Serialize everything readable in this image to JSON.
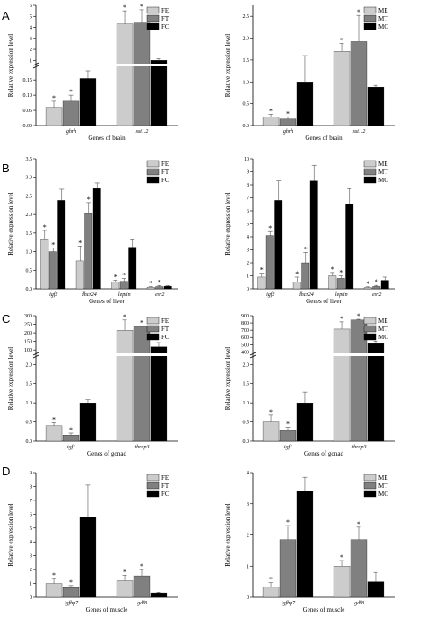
{
  "panel_labels": [
    "A",
    "B",
    "C",
    "D"
  ],
  "colors": {
    "E": "#cccccc",
    "T": "#808080",
    "C": "#000000",
    "axis": "#000000",
    "error": "#555555"
  },
  "chart_data": [
    {
      "type": "bar",
      "panel": "A",
      "position": "left",
      "broken_axis": true,
      "categories": [
        "ghrh",
        "sst1.2"
      ],
      "series": [
        {
          "name": "FE",
          "values": [
            0.06,
            4.3
          ],
          "errors": [
            0.02,
            1.2
          ],
          "sig": [
            true,
            true
          ]
        },
        {
          "name": "FT",
          "values": [
            0.08,
            4.4
          ],
          "errors": [
            0.02,
            1.2
          ],
          "sig": [
            true,
            true
          ]
        },
        {
          "name": "FC",
          "values": [
            0.155,
            1.0
          ],
          "errors": [
            0.025,
            0.15
          ],
          "sig": [
            false,
            false
          ]
        }
      ],
      "ylabel": "Relative expression level",
      "xlabel": "Genes of brain",
      "lower_ticks": [
        "0.00",
        "0.05",
        "0.10",
        "0.15"
      ],
      "lower_range": [
        0,
        0.18
      ],
      "upper_ticks": [
        "1",
        "2",
        "3",
        "4",
        "5",
        "6"
      ],
      "upper_range": [
        0.7,
        6
      ]
    },
    {
      "type": "bar",
      "panel": "A",
      "position": "right",
      "broken_axis": false,
      "categories": [
        "ghrh",
        "sst1.2"
      ],
      "series": [
        {
          "name": "ME",
          "values": [
            0.2,
            1.7
          ],
          "errors": [
            0.06,
            0.18
          ],
          "sig": [
            true,
            true
          ]
        },
        {
          "name": "MT",
          "values": [
            0.15,
            1.92
          ],
          "errors": [
            0.05,
            0.6
          ],
          "sig": [
            true,
            true
          ]
        },
        {
          "name": "MC",
          "values": [
            1.0,
            0.88
          ],
          "errors": [
            0.6,
            0.04
          ],
          "sig": [
            false,
            false
          ]
        }
      ],
      "ylabel": "Relative expression level",
      "xlabel": "Genes of brain",
      "yticks": [
        "0.0",
        "0.5",
        "1.0",
        "1.5",
        "2.0",
        "2.5"
      ],
      "ylim": [
        0,
        2.75
      ]
    },
    {
      "type": "bar",
      "panel": "B",
      "position": "left",
      "broken_axis": false,
      "categories": [
        "igf2",
        "dhcr24",
        "leptin",
        "esr2"
      ],
      "series": [
        {
          "name": "FE",
          "values": [
            1.32,
            0.75,
            0.18,
            0.04
          ],
          "errors": [
            0.25,
            0.4,
            0.05,
            0.02
          ],
          "sig": [
            true,
            true,
            true,
            true
          ]
        },
        {
          "name": "FT",
          "values": [
            1.0,
            2.02,
            0.2,
            0.06
          ],
          "errors": [
            0.1,
            0.3,
            0.08,
            0.03
          ],
          "sig": [
            true,
            true,
            true,
            true
          ]
        },
        {
          "name": "FC",
          "values": [
            2.38,
            2.7,
            1.12,
            0.07
          ],
          "errors": [
            0.3,
            0.15,
            0.2,
            0.02
          ],
          "sig": [
            false,
            false,
            false,
            false
          ]
        }
      ],
      "ylabel": "Relative expression level",
      "xlabel": "Genes of liver",
      "yticks": [
        "0.0",
        "0.5",
        "1.0",
        "1.5",
        "2.0",
        "2.5",
        "3.0",
        "3.5"
      ],
      "ylim": [
        0,
        3.5
      ]
    },
    {
      "type": "bar",
      "panel": "B",
      "position": "right",
      "broken_axis": false,
      "categories": [
        "igf2",
        "dhcr24",
        "leptin",
        "esr2"
      ],
      "series": [
        {
          "name": "ME",
          "values": [
            0.9,
            0.5,
            1.0,
            0.1
          ],
          "errors": [
            0.3,
            0.4,
            0.25,
            0.05
          ],
          "sig": [
            true,
            true,
            true,
            true
          ]
        },
        {
          "name": "MT",
          "values": [
            4.1,
            2.0,
            0.8,
            0.18
          ],
          "errors": [
            0.3,
            0.8,
            0.2,
            0.08
          ],
          "sig": [
            true,
            true,
            true,
            true
          ]
        },
        {
          "name": "MC",
          "values": [
            6.8,
            8.3,
            6.5,
            0.65
          ],
          "errors": [
            1.5,
            1.2,
            1.2,
            0.25
          ],
          "sig": [
            false,
            false,
            false,
            false
          ]
        }
      ],
      "ylabel": "Relative expression level",
      "xlabel": "Genes of liver",
      "yticks": [
        "0",
        "1",
        "2",
        "3",
        "4",
        "5",
        "6",
        "7",
        "8",
        "9",
        "10"
      ],
      "ylim": [
        0,
        10
      ]
    },
    {
      "type": "bar",
      "panel": "C",
      "position": "left",
      "broken_axis": true,
      "categories": [
        "igf1",
        "thrap3"
      ],
      "series": [
        {
          "name": "FE",
          "values": [
            0.4,
            215
          ],
          "errors": [
            0.08,
            60
          ],
          "sig": [
            true,
            true
          ]
        },
        {
          "name": "FT",
          "values": [
            0.16,
            235
          ],
          "errors": [
            0.05,
            6
          ],
          "sig": [
            true,
            true
          ]
        },
        {
          "name": "FC",
          "values": [
            1.0,
            118
          ],
          "errors": [
            0.08,
            25
          ],
          "sig": [
            false,
            false
          ]
        }
      ],
      "ylabel": "Relative expression level",
      "xlabel": "Genes of gonad",
      "lower_ticks": [
        "0.0",
        "0.5",
        "1.0",
        "1.5",
        "2.0"
      ],
      "lower_range": [
        0,
        2.1
      ],
      "upper_ticks": [
        "100",
        "150",
        "200",
        "250",
        "300"
      ],
      "upper_range": [
        80,
        300
      ]
    },
    {
      "type": "bar",
      "panel": "C",
      "position": "right",
      "broken_axis": true,
      "categories": [
        "igf1",
        "thrap3"
      ],
      "series": [
        {
          "name": "ME",
          "values": [
            0.5,
            715
          ],
          "errors": [
            0.18,
            100
          ],
          "sig": [
            true,
            true
          ]
        },
        {
          "name": "MT",
          "values": [
            0.28,
            840
          ],
          "errors": [
            0.08,
            10
          ],
          "sig": [
            true,
            true
          ]
        },
        {
          "name": "MC",
          "values": [
            1.0,
            515
          ],
          "errors": [
            0.28,
            35
          ],
          "sig": [
            false,
            false
          ]
        }
      ],
      "ylabel": "Relative expression level",
      "xlabel": "Genes of gonad",
      "lower_ticks": [
        "0.0",
        "0.5",
        "1.0",
        "1.5",
        "2.0"
      ],
      "lower_range": [
        0,
        2.1
      ],
      "upper_ticks": [
        "400",
        "500",
        "600",
        "700",
        "800",
        "900"
      ],
      "upper_range": [
        380,
        900
      ]
    },
    {
      "type": "bar",
      "panel": "D",
      "position": "left",
      "broken_axis": false,
      "categories": [
        "igfbp7",
        "gdf8"
      ],
      "series": [
        {
          "name": "FE",
          "values": [
            1.0,
            1.2
          ],
          "errors": [
            0.35,
            0.4
          ],
          "sig": [
            true,
            true
          ]
        },
        {
          "name": "FT",
          "values": [
            0.7,
            1.55
          ],
          "errors": [
            0.15,
            0.45
          ],
          "sig": [
            true,
            true
          ]
        },
        {
          "name": "FC",
          "values": [
            5.8,
            0.32
          ],
          "errors": [
            2.3,
            0.05
          ],
          "sig": [
            false,
            false
          ]
        }
      ],
      "ylabel": "Relative expression level",
      "xlabel": "Genes of muscle",
      "yticks": [
        "0",
        "1",
        "2",
        "3",
        "4",
        "5",
        "6",
        "7",
        "8",
        "9"
      ],
      "ylim": [
        0,
        9
      ]
    },
    {
      "type": "bar",
      "panel": "D",
      "position": "right",
      "broken_axis": false,
      "categories": [
        "igfbp7",
        "gdf8"
      ],
      "series": [
        {
          "name": "ME",
          "values": [
            0.32,
            1.0
          ],
          "errors": [
            0.15,
            0.18
          ],
          "sig": [
            true,
            true
          ]
        },
        {
          "name": "MT",
          "values": [
            1.85,
            1.85
          ],
          "errors": [
            0.45,
            0.4
          ],
          "sig": [
            true,
            true
          ]
        },
        {
          "name": "MC",
          "values": [
            3.4,
            0.5
          ],
          "errors": [
            0.45,
            0.3
          ],
          "sig": [
            false,
            false
          ]
        }
      ],
      "ylabel": "Relative expression level",
      "xlabel": "Genes of muscle",
      "yticks": [
        "0",
        "1",
        "2",
        "3",
        "4"
      ],
      "ylim": [
        0,
        4
      ]
    }
  ]
}
